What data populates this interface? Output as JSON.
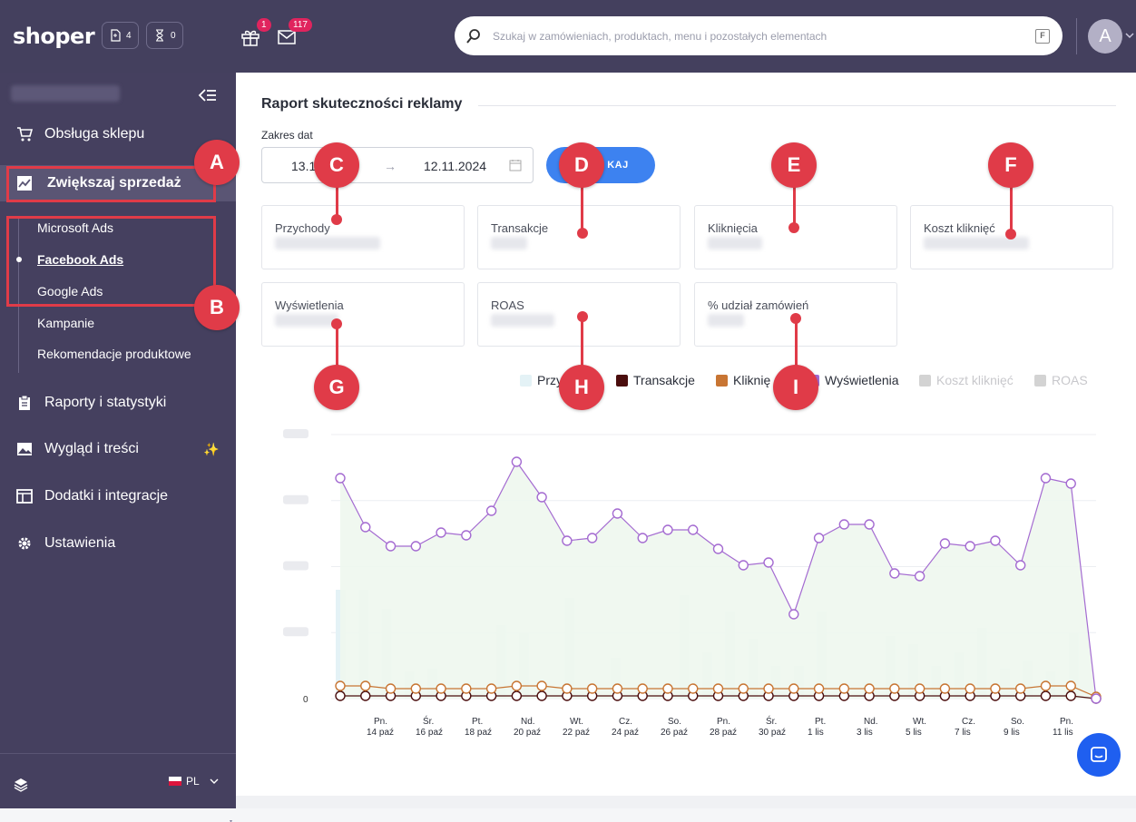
{
  "topbar": {
    "logo": "shoper",
    "drafts_count": "4",
    "pending_count": "0",
    "gifts_count": "1",
    "messages_count": "117",
    "search_placeholder": "Szukaj w zamówieniach, produktach, menu i pozostałych elementach",
    "search_shortcut": "F",
    "avatar_letter": "A"
  },
  "sidebar": {
    "items": [
      {
        "label": "Obsługa sklepu",
        "icon": "cart-icon"
      },
      {
        "label": "Zwiększaj sprzedaż",
        "icon": "chart-trend-icon"
      },
      {
        "label": "Raporty i statystyki",
        "icon": "clipboard-icon"
      },
      {
        "label": "Wygląd i treści",
        "icon": "image-icon"
      },
      {
        "label": "Dodatki i integracje",
        "icon": "window-icon"
      },
      {
        "label": "Ustawienia",
        "icon": "gear-icon"
      }
    ],
    "subitems": [
      "Microsoft Ads",
      "Facebook Ads",
      "Google Ads",
      "Kampanie",
      "Rekomendacje produktowe"
    ],
    "current_subitem": "Facebook Ads",
    "language": "PL"
  },
  "report": {
    "title": "Raport skuteczności reklamy",
    "date_range_label": "Zakres dat",
    "date_from": "13.1",
    "date_arrow": "→",
    "date_to": "12.11.2024",
    "show_button": "KAJ"
  },
  "metrics": [
    {
      "label": "Przychody"
    },
    {
      "label": "Transakcje"
    },
    {
      "label": "Kliknięcia"
    },
    {
      "label": "Koszt kliknięć"
    },
    {
      "label": "Wyświetlenia"
    },
    {
      "label": "ROAS"
    },
    {
      "label": "% udział zamówień"
    }
  ],
  "markers": [
    "A",
    "B",
    "C",
    "D",
    "E",
    "F",
    "G",
    "H",
    "I"
  ],
  "colors": {
    "topbar": "#44405e",
    "sidebar": "#45405f",
    "accent_button": "#3d82f0",
    "marker_red": "#e03b48",
    "series_views": "#a46bd1",
    "series_area": "#eef7ee",
    "series_revenue_bars": "#e4f2f6",
    "series_transactions": "#4a0d0d",
    "series_clicks": "#c87533"
  },
  "chart_data": {
    "type": "line",
    "legend": [
      {
        "name": "Przy",
        "color": "#e4f2f6",
        "active": true
      },
      {
        "name": "Transakcje",
        "color": "#4a0d0d",
        "active": true
      },
      {
        "name": "Kliknię",
        "color": "#c87533",
        "active": true
      },
      {
        "name": "Wyświetlenia",
        "color": "#a46bd1",
        "active": true
      },
      {
        "name": "Koszt kliknięć",
        "color": "#d3d3d3",
        "active": false
      },
      {
        "name": "ROAS",
        "color": "#d3d3d3",
        "active": false
      }
    ],
    "y_zero_label": "0",
    "x_ticks": [
      {
        "day": "Pn.",
        "date": "14 paź"
      },
      {
        "day": "Śr.",
        "date": "16 paź"
      },
      {
        "day": "Pt.",
        "date": "18 paź"
      },
      {
        "day": "Nd.",
        "date": "20 paź"
      },
      {
        "day": "Wt.",
        "date": "22 paź"
      },
      {
        "day": "Cz.",
        "date": "24 paź"
      },
      {
        "day": "So.",
        "date": "26 paź"
      },
      {
        "day": "Pn.",
        "date": "28 paź"
      },
      {
        "day": "Śr.",
        "date": "30 paź"
      },
      {
        "day": "Pt.",
        "date": "1 lis"
      },
      {
        "day": "Nd.",
        "date": "3 lis"
      },
      {
        "day": "Wt.",
        "date": "5 lis"
      },
      {
        "day": "Cz.",
        "date": "7 lis"
      },
      {
        "day": "So.",
        "date": "9 lis"
      },
      {
        "day": "Pn.",
        "date": "11 lis"
      }
    ],
    "views": [
      0.81,
      0.63,
      0.56,
      0.56,
      0.61,
      0.6,
      0.69,
      0.87,
      0.74,
      0.58,
      0.59,
      0.68,
      0.59,
      0.62,
      0.62,
      0.55,
      0.49,
      0.5,
      0.31,
      0.59,
      0.64,
      0.64,
      0.46,
      0.45,
      0.57,
      0.56,
      0.58,
      0.49,
      0.81,
      0.79,
      0.0
    ],
    "revenue": [
      0.4,
      0.4,
      0.33,
      0.1,
      0.11,
      0.0,
      0.0,
      0.27,
      0.24,
      0.0,
      0.37,
      0.0,
      0.15,
      0.0,
      0.0,
      0.38,
      0.17,
      0.32,
      0.22,
      0.12,
      0.12,
      0.32,
      0.0,
      0.06,
      0.23,
      0.2,
      0.12,
      0.17,
      0.26,
      0.11,
      0.14,
      0.1,
      0.24,
      0.0
    ],
    "clicks": [
      0.04,
      0.04,
      0.03,
      0.03,
      0.03,
      0.03,
      0.03,
      0.04,
      0.04,
      0.03,
      0.03,
      0.03,
      0.03,
      0.03,
      0.03,
      0.03,
      0.03,
      0.03,
      0.03,
      0.03,
      0.03,
      0.03,
      0.03,
      0.03,
      0.03,
      0.03,
      0.03,
      0.03,
      0.04,
      0.04,
      0.0
    ],
    "transactions": [
      0.01,
      0.01,
      0.01,
      0.01,
      0.01,
      0.01,
      0.01,
      0.01,
      0.01,
      0.01,
      0.01,
      0.01,
      0.01,
      0.01,
      0.01,
      0.01,
      0.01,
      0.01,
      0.01,
      0.01,
      0.01,
      0.01,
      0.01,
      0.01,
      0.01,
      0.01,
      0.01,
      0.01,
      0.01,
      0.01,
      0.0
    ]
  }
}
